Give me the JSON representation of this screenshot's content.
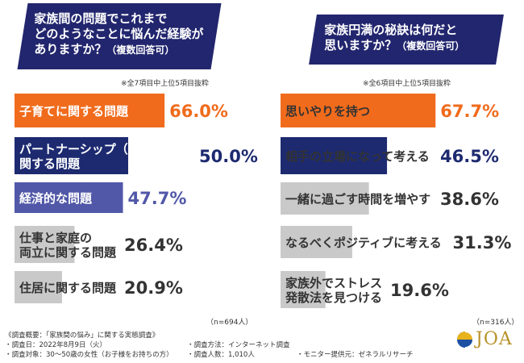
{
  "left_panel": {
    "question_line1": "家族間の問題でこれまで",
    "question_line2": "どのようなことに悩んだ経験が",
    "question_line3": "ありますか？",
    "question_suffix": "（複数回答可）",
    "note": "※全7項目中上位5項目抜粋",
    "n_label": "（n=694人）"
  },
  "right_panel": {
    "question_line1": "家族円満の秘訣は何だと",
    "question_line2": "思いますか？",
    "question_suffix": "（複数回答可）",
    "note": "※全6項目中上位5項目抜粋",
    "n_label": "（n=316人）"
  },
  "colors": {
    "navy": "#22266e",
    "orange": "#f06b1c",
    "indigo": "#1d2a70",
    "purple": "#5158a8",
    "gray": "#c9c9c9",
    "text_dark": "#333333"
  },
  "chart_data": [
    {
      "type": "bar",
      "orientation": "horizontal",
      "categories": [
        "子育てに関する問題",
        "パートナーシップ（夫婦間）に関する問題",
        "経済的な問題",
        "仕事と家庭の両立に関する問題",
        "住居に関する問題"
      ],
      "category_lines": [
        [
          "子育てに関する問題"
        ],
        [
          "パートナーシップ（夫婦間）に",
          "関する問題"
        ],
        [
          "経済的な問題"
        ],
        [
          "仕事と家庭の",
          "両立に関する問題"
        ],
        [
          "住居に関する問題"
        ]
      ],
      "values": [
        66.0,
        50.0,
        47.7,
        26.4,
        20.9
      ],
      "value_labels": [
        "66.0%",
        "50.0%",
        "47.7%",
        "26.4%",
        "20.9%"
      ],
      "bar_colors": [
        "#f06b1c",
        "#1d2a70",
        "#5158a8",
        "#c9c9c9",
        "#c9c9c9"
      ],
      "label_colors": [
        "#ffffff",
        "#ffffff",
        "#ffffff",
        "#333333",
        "#333333"
      ],
      "value_colors": [
        "#f06b1c",
        "#1d2a70",
        "#5158a8",
        "#333333",
        "#333333"
      ],
      "xlim": [
        0,
        100
      ],
      "grid": false
    },
    {
      "type": "bar",
      "orientation": "horizontal",
      "categories": [
        "思いやりを持つ",
        "相手の立場になって考える",
        "一緒に過ごす時間を増やす",
        "なるべくポジティブに考える",
        "家族外でストレス発散法を見つける"
      ],
      "category_lines": [
        [
          "思いやりを持つ"
        ],
        [
          "相手の立場になって考える"
        ],
        [
          "一緒に過ごす時間を増やす"
        ],
        [
          "なるべくポジティブに考える"
        ],
        [
          "家族外でストレス",
          "発散法を見つける"
        ]
      ],
      "values": [
        67.7,
        46.5,
        38.6,
        31.3,
        19.6
      ],
      "value_labels": [
        "67.7%",
        "46.5%",
        "38.6%",
        "31.3%",
        "19.6%"
      ],
      "bar_colors": [
        "#f06b1c",
        "#1d2a70",
        "#c9c9c9",
        "#c9c9c9",
        "#c9c9c9"
      ],
      "label_colors": [
        "#333333",
        "#333333",
        "#333333",
        "#333333",
        "#333333"
      ],
      "value_colors": [
        "#f06b1c",
        "#1d2a70",
        "#333333",
        "#333333",
        "#333333"
      ],
      "xlim": [
        0,
        100
      ],
      "grid": false
    }
  ],
  "footer": {
    "col1": [
      "《調査概要：「家族間の悩み」に関する実態調査》",
      "・調査日：2022年8月9日（火）",
      "・調査対象：30〜50歳の女性（お子様をお持ちの方）"
    ],
    "col2": [
      "・調査方法：インターネット調査",
      "・調査人数：1,010人"
    ],
    "col3": [
      "・モニター提供元：ゼネラルリサーチ"
    ]
  },
  "logo": {
    "text": "JOA"
  }
}
